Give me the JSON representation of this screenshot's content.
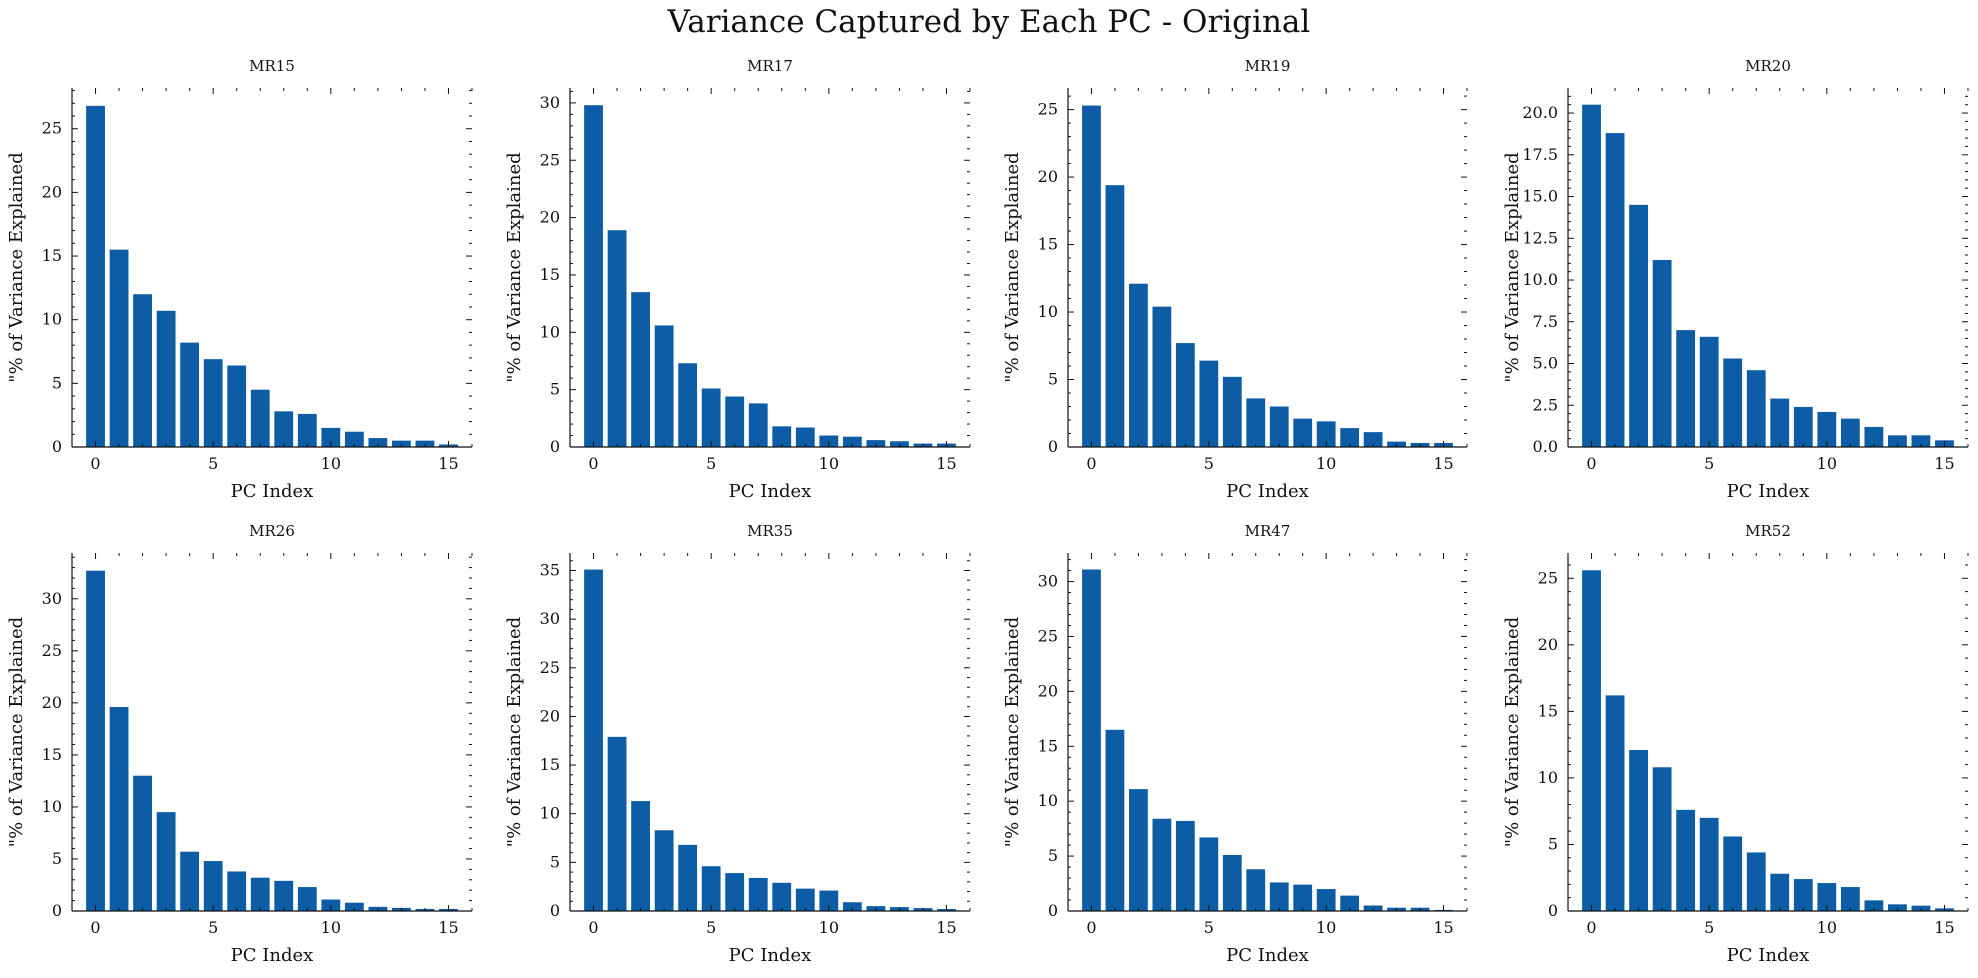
{
  "figure": {
    "suptitle": "Variance Captured by Each PC - Original",
    "bar_color": "#0C5DA5"
  },
  "chart_data": [
    {
      "type": "bar",
      "title": "MR15",
      "xlabel": "PC Index",
      "ylabel": "\"% of Variance Explained",
      "x": [
        0,
        1,
        2,
        3,
        4,
        5,
        6,
        7,
        8,
        9,
        10,
        11,
        12,
        13,
        14,
        15
      ],
      "values": [
        26.8,
        15.5,
        12.0,
        10.7,
        8.2,
        6.9,
        6.4,
        4.5,
        2.8,
        2.6,
        1.5,
        1.2,
        0.7,
        0.5,
        0.5,
        0.2
      ],
      "xlim": [
        -1,
        16
      ],
      "ylim": [
        0,
        28.2
      ],
      "xticks": [
        0,
        5,
        10,
        15
      ],
      "yticks": [
        0,
        5,
        10,
        15,
        20,
        25
      ]
    },
    {
      "type": "bar",
      "title": "MR17",
      "xlabel": "PC Index",
      "ylabel": "\"% of Variance Explained",
      "x": [
        0,
        1,
        2,
        3,
        4,
        5,
        6,
        7,
        8,
        9,
        10,
        11,
        12,
        13,
        14,
        15
      ],
      "values": [
        29.8,
        18.9,
        13.5,
        10.6,
        7.3,
        5.1,
        4.4,
        3.8,
        1.8,
        1.7,
        1.0,
        0.9,
        0.6,
        0.5,
        0.3,
        0.3
      ],
      "xlim": [
        -1,
        16
      ],
      "ylim": [
        0,
        31.3
      ],
      "xticks": [
        0,
        5,
        10,
        15
      ],
      "yticks": [
        0,
        5,
        10,
        15,
        20,
        25,
        30
      ]
    },
    {
      "type": "bar",
      "title": "MR19",
      "xlabel": "PC Index",
      "ylabel": "\"% of Variance Explained",
      "x": [
        0,
        1,
        2,
        3,
        4,
        5,
        6,
        7,
        8,
        9,
        10,
        11,
        12,
        13,
        14,
        15
      ],
      "values": [
        25.3,
        19.4,
        12.1,
        10.4,
        7.7,
        6.4,
        5.2,
        3.6,
        3.0,
        2.1,
        1.9,
        1.4,
        1.1,
        0.4,
        0.3,
        0.3
      ],
      "xlim": [
        -1,
        16
      ],
      "ylim": [
        0,
        26.6
      ],
      "xticks": [
        0,
        5,
        10,
        15
      ],
      "yticks": [
        0,
        5,
        10,
        15,
        20,
        25
      ]
    },
    {
      "type": "bar",
      "title": "MR20",
      "xlabel": "PC Index",
      "ylabel": "\"% of Variance Explained",
      "x": [
        0,
        1,
        2,
        3,
        4,
        5,
        6,
        7,
        8,
        9,
        10,
        11,
        12,
        13,
        14,
        15
      ],
      "values": [
        20.5,
        18.8,
        14.5,
        11.2,
        7.0,
        6.6,
        5.3,
        4.6,
        2.9,
        2.4,
        2.1,
        1.7,
        1.2,
        0.7,
        0.7,
        0.4
      ],
      "xlim": [
        -1,
        16
      ],
      "ylim": [
        0,
        21.5
      ],
      "xticks": [
        0,
        5,
        10,
        15
      ],
      "yticks": [
        0.0,
        2.5,
        5.0,
        7.5,
        10.0,
        12.5,
        15.0,
        17.5,
        20.0
      ]
    },
    {
      "type": "bar",
      "title": "MR26",
      "xlabel": "PC Index",
      "ylabel": "\"% of Variance Explained",
      "x": [
        0,
        1,
        2,
        3,
        4,
        5,
        6,
        7,
        8,
        9,
        10,
        11,
        12,
        13,
        14,
        15
      ],
      "values": [
        32.7,
        19.6,
        13.0,
        9.5,
        5.7,
        4.8,
        3.8,
        3.2,
        2.9,
        2.3,
        1.1,
        0.8,
        0.4,
        0.3,
        0.2,
        0.2
      ],
      "xlim": [
        -1,
        16
      ],
      "ylim": [
        0,
        34.4
      ],
      "xticks": [
        0,
        5,
        10,
        15
      ],
      "yticks": [
        0,
        5,
        10,
        15,
        20,
        25,
        30
      ]
    },
    {
      "type": "bar",
      "title": "MR35",
      "xlabel": "PC Index",
      "ylabel": "\"% of Variance Explained",
      "x": [
        0,
        1,
        2,
        3,
        4,
        5,
        6,
        7,
        8,
        9,
        10,
        11,
        12,
        13,
        14,
        15
      ],
      "values": [
        35.1,
        17.9,
        11.3,
        8.3,
        6.8,
        4.6,
        3.9,
        3.4,
        2.9,
        2.3,
        2.1,
        0.9,
        0.5,
        0.4,
        0.3,
        0.2
      ],
      "xlim": [
        -1,
        16
      ],
      "ylim": [
        0,
        36.8
      ],
      "xticks": [
        0,
        5,
        10,
        15
      ],
      "yticks": [
        0,
        5,
        10,
        15,
        20,
        25,
        30,
        35
      ]
    },
    {
      "type": "bar",
      "title": "MR47",
      "xlabel": "PC Index",
      "ylabel": "\"% of Variance Explained",
      "x": [
        0,
        1,
        2,
        3,
        4,
        5,
        6,
        7,
        8,
        9,
        10,
        11,
        12,
        13,
        14,
        15
      ],
      "values": [
        31.1,
        16.5,
        11.1,
        8.4,
        8.2,
        6.7,
        5.1,
        3.8,
        2.6,
        2.4,
        2.0,
        1.4,
        0.5,
        0.3,
        0.3,
        0.1
      ],
      "xlim": [
        -1,
        16
      ],
      "ylim": [
        0,
        32.6
      ],
      "xticks": [
        0,
        5,
        10,
        15
      ],
      "yticks": [
        0,
        5,
        10,
        15,
        20,
        25,
        30
      ]
    },
    {
      "type": "bar",
      "title": "MR52",
      "xlabel": "PC Index",
      "ylabel": "\"% of Variance Explained",
      "x": [
        0,
        1,
        2,
        3,
        4,
        5,
        6,
        7,
        8,
        9,
        10,
        11,
        12,
        13,
        14,
        15
      ],
      "values": [
        25.6,
        16.2,
        12.1,
        10.8,
        7.6,
        7.0,
        5.6,
        4.4,
        2.8,
        2.4,
        2.1,
        1.8,
        0.8,
        0.5,
        0.4,
        0.2
      ],
      "xlim": [
        -1,
        16
      ],
      "ylim": [
        0,
        26.9
      ],
      "xticks": [
        0,
        5,
        10,
        15
      ],
      "yticks": [
        0,
        5,
        10,
        15,
        20,
        25
      ]
    }
  ]
}
